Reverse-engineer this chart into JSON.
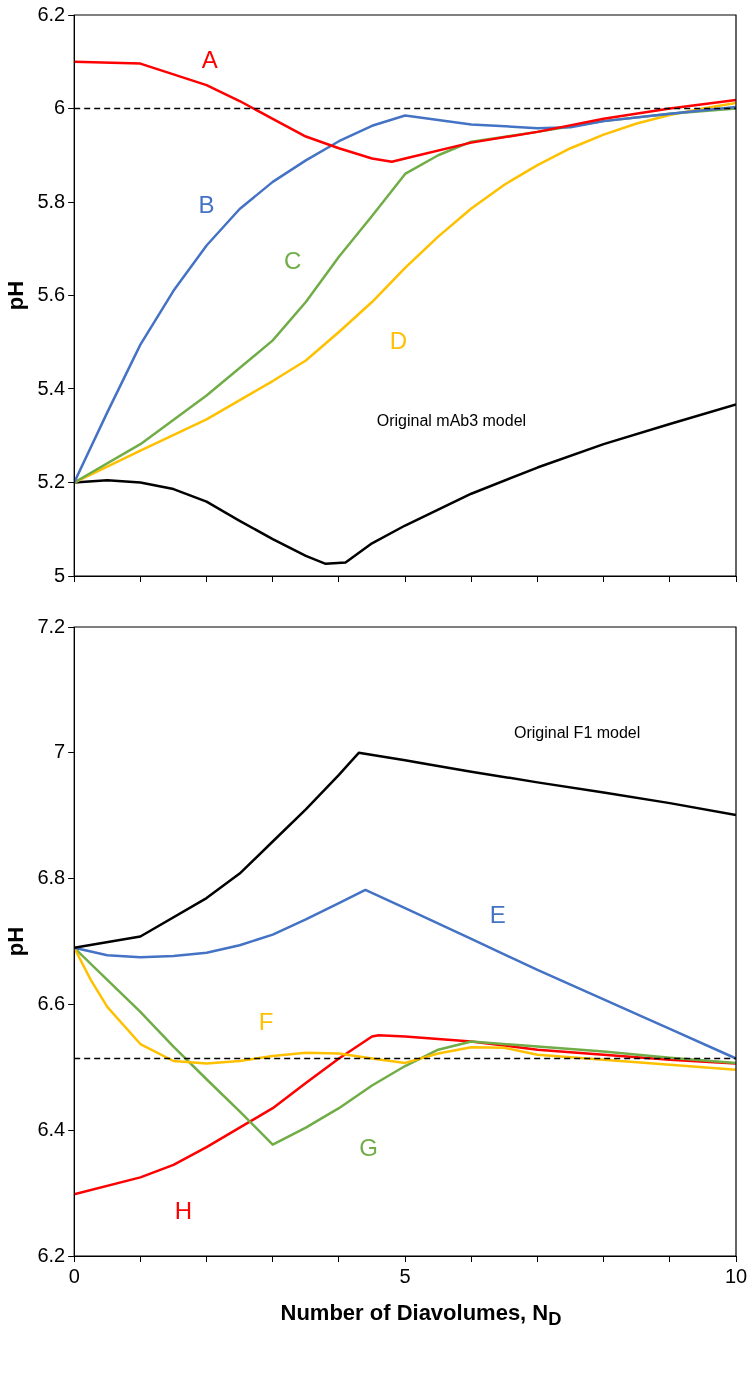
{
  "chart_data": [
    {
      "type": "line",
      "ylabel": "pH",
      "xlim": [
        0,
        10
      ],
      "xticks": [
        {
          "value": 0,
          "label": null
        },
        {
          "value": 1,
          "label": null
        },
        {
          "value": 2,
          "label": null
        },
        {
          "value": 3,
          "label": null
        },
        {
          "value": 4,
          "label": null
        },
        {
          "value": 5,
          "label": null
        },
        {
          "value": 6,
          "label": null
        },
        {
          "value": 7,
          "label": null
        },
        {
          "value": 8,
          "label": null
        },
        {
          "value": 9,
          "label": null
        },
        {
          "value": 10,
          "label": null
        }
      ],
      "ylim": [
        5,
        6.2
      ],
      "yticks": [
        5,
        5.2,
        5.4,
        5.6,
        5.8,
        6,
        6.2
      ],
      "tick_labels": "y",
      "grid": false,
      "legend": false,
      "marker": "none",
      "ref_lines": [
        {
          "axis": "y",
          "value": 6,
          "color": "#000000",
          "line_style": "dashed"
        }
      ],
      "series": [
        {
          "name": "A",
          "color": "#ff0000",
          "x": [
            0,
            1,
            2,
            2.5,
            3,
            3.5,
            4,
            4.5,
            4.8,
            5,
            6,
            7,
            8,
            9,
            10
          ],
          "values": [
            6.1,
            6.096,
            6.05,
            6.016,
            5.978,
            5.94,
            5.915,
            5.893,
            5.886,
            5.893,
            5.927,
            5.95,
            5.978,
            6.0,
            6.018
          ]
        },
        {
          "name": "B",
          "color": "#4472c4",
          "x": [
            0,
            0.5,
            1,
            1.5,
            2,
            2.5,
            3,
            3.5,
            4,
            4.5,
            5,
            6,
            7,
            7.5,
            8,
            9,
            10
          ],
          "values": [
            5.2,
            5.35,
            5.495,
            5.61,
            5.707,
            5.785,
            5.843,
            5.889,
            5.93,
            5.963,
            5.985,
            5.966,
            5.958,
            5.96,
            5.973,
            5.989,
            6.003
          ]
        },
        {
          "name": "C",
          "color": "#70ad47",
          "x": [
            0,
            1,
            2,
            3,
            3.5,
            4,
            4.5,
            5,
            5.5,
            6,
            7,
            8,
            9,
            10
          ],
          "values": [
            5.2,
            5.282,
            5.386,
            5.504,
            5.586,
            5.683,
            5.77,
            5.86,
            5.9,
            5.929,
            5.95,
            5.973,
            5.989,
            6.0
          ]
        },
        {
          "name": "D",
          "color": "#ffc000",
          "x": [
            0,
            1,
            2,
            3,
            3.5,
            4,
            4.5,
            5,
            5.5,
            6,
            6.5,
            7,
            7.5,
            8,
            8.5,
            9,
            9.5,
            10
          ],
          "values": [
            5.2,
            5.268,
            5.335,
            5.417,
            5.461,
            5.522,
            5.586,
            5.659,
            5.726,
            5.786,
            5.837,
            5.879,
            5.915,
            5.944,
            5.968,
            5.986,
            6.0,
            6.012
          ]
        },
        {
          "name": "Original mAb3 model",
          "color": "#000000",
          "x": [
            0,
            0.5,
            1,
            1.5,
            2,
            2.5,
            3,
            3.5,
            3.8,
            4.1,
            4.5,
            5,
            6,
            7,
            8,
            9,
            10
          ],
          "values": [
            5.2,
            5.205,
            5.2,
            5.186,
            5.159,
            5.118,
            5.079,
            5.043,
            5.026,
            5.029,
            5.07,
            5.108,
            5.176,
            5.232,
            5.282,
            5.325,
            5.367
          ]
        }
      ]
    },
    {
      "type": "line",
      "xlabel": "Number of Diavolumes, N$_{D}$",
      "ylabel": "pH",
      "xlim": [
        0,
        10
      ],
      "xticks": [
        0,
        {
          "value": 1,
          "label": null
        },
        {
          "value": 2,
          "label": null
        },
        {
          "value": 3,
          "label": null
        },
        {
          "value": 4,
          "label": null
        },
        5,
        {
          "value": 6,
          "label": null
        },
        {
          "value": 7,
          "label": null
        },
        {
          "value": 8,
          "label": null
        },
        {
          "value": 9,
          "label": null
        },
        10
      ],
      "ylim": [
        6.2,
        7.2
      ],
      "yticks": [
        6.2,
        6.4,
        6.6,
        6.8,
        7,
        7.2
      ],
      "grid": false,
      "legend": false,
      "marker": "none",
      "ref_lines": [
        {
          "axis": "y",
          "value": 6.514,
          "color": "#000000",
          "line_style": "dashed"
        }
      ],
      "series": [
        {
          "name": "Original F1 model",
          "color": "#000000",
          "x": [
            0,
            1,
            2,
            2.5,
            3,
            3.5,
            4,
            4.3,
            5,
            6,
            7,
            8,
            9,
            10
          ],
          "values": [
            6.69,
            6.708,
            6.769,
            6.808,
            6.859,
            6.91,
            6.965,
            7.0,
            6.988,
            6.97,
            6.953,
            6.937,
            6.92,
            6.901
          ]
        },
        {
          "name": "E",
          "color": "#4472c4",
          "x": [
            0,
            0.5,
            1,
            1.5,
            2,
            2.5,
            3,
            3.5,
            4,
            4.4,
            5,
            6,
            7,
            8,
            9,
            10
          ],
          "values": [
            6.69,
            6.678,
            6.675,
            6.677,
            6.682,
            6.694,
            6.711,
            6.735,
            6.761,
            6.782,
            6.753,
            6.704,
            6.655,
            6.608,
            6.561,
            6.514
          ]
        },
        {
          "name": "F",
          "color": "#ffc000",
          "x": [
            0,
            0.25,
            0.5,
            1,
            1.5,
            2,
            2.5,
            3,
            3.5,
            4,
            4.5,
            5,
            5.5,
            6,
            6.5,
            7,
            8,
            9,
            10
          ],
          "values": [
            6.69,
            6.639,
            6.596,
            6.537,
            6.51,
            6.506,
            6.51,
            6.518,
            6.523,
            6.522,
            6.514,
            6.507,
            6.522,
            6.532,
            6.531,
            6.52,
            6.512,
            6.504,
            6.496
          ]
        },
        {
          "name": "G",
          "color": "#70ad47",
          "x": [
            0,
            0.5,
            1,
            1.5,
            2,
            2.5,
            3,
            3.5,
            4,
            4.5,
            5,
            5.5,
            6,
            7,
            8,
            9,
            10
          ],
          "values": [
            6.69,
            6.639,
            6.588,
            6.533,
            6.481,
            6.43,
            6.377,
            6.404,
            6.435,
            6.471,
            6.502,
            6.528,
            6.541,
            6.533,
            6.525,
            6.515,
            6.507
          ]
        },
        {
          "name": "H",
          "color": "#ff0000",
          "x": [
            0,
            1,
            1.5,
            2,
            2.5,
            3,
            3.5,
            4,
            4.5,
            4.6,
            5,
            6,
            7,
            8,
            9,
            10
          ],
          "values": [
            6.298,
            6.325,
            6.345,
            6.373,
            6.404,
            6.435,
            6.475,
            6.514,
            6.549,
            6.551,
            6.549,
            6.541,
            6.528,
            6.52,
            6.512,
            6.506
          ]
        }
      ]
    }
  ]
}
